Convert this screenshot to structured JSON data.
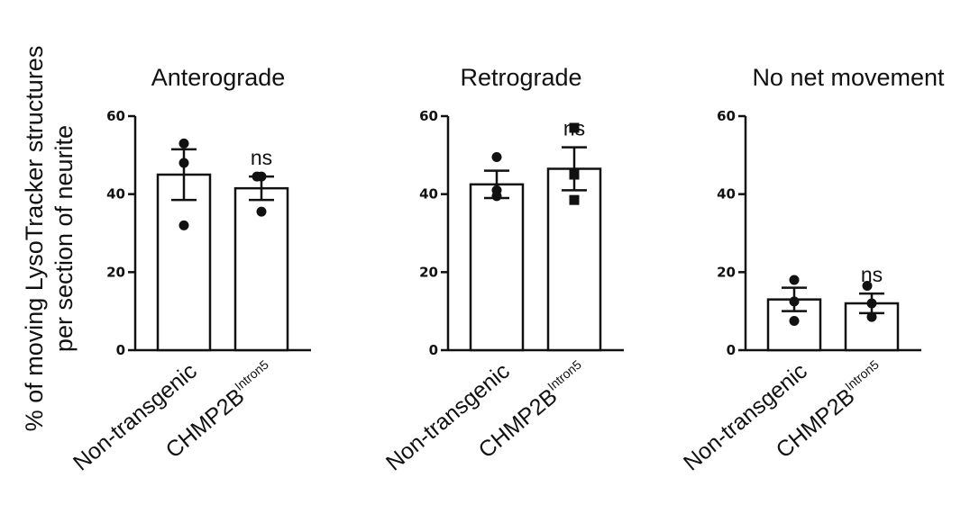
{
  "figure": {
    "ylabel_line1": "% of moving LysoTracker structures",
    "ylabel_line2": "per section of neurite"
  },
  "chart_data": [
    {
      "type": "bar",
      "title": "Anterograde",
      "categories": [
        "Non-transgenic",
        "CHMP2B"
      ],
      "category_superscripts": [
        "",
        "Intron5"
      ],
      "values": [
        45,
        41.5
      ],
      "errors": [
        6.5,
        3
      ],
      "points": [
        [
          53,
          48,
          32
        ],
        [
          44.5,
          44.5,
          35.5
        ]
      ],
      "point_markers": [
        "circle",
        "circle"
      ],
      "significance": [
        "",
        "ns"
      ],
      "ylim": [
        0,
        60
      ],
      "yticks": [
        0,
        20,
        40,
        60
      ],
      "ylabel": "% of moving LysoTracker structures per section of neurite"
    },
    {
      "type": "bar",
      "title": "Retrograde",
      "categories": [
        "Non-transgenic",
        "CHMP2B"
      ],
      "category_superscripts": [
        "",
        "Intron5"
      ],
      "values": [
        42.5,
        46.5
      ],
      "errors": [
        3.5,
        5.5
      ],
      "points": [
        [
          49.5,
          41,
          39.5
        ],
        [
          57,
          45,
          38.5
        ]
      ],
      "point_markers": [
        "circle",
        "square"
      ],
      "significance": [
        "",
        "ns"
      ],
      "ylim": [
        0,
        60
      ],
      "yticks": [
        0,
        20,
        40,
        60
      ]
    },
    {
      "type": "bar",
      "title": "No net movement",
      "categories": [
        "Non-transgenic",
        "CHMP2B"
      ],
      "category_superscripts": [
        "",
        "Intron5"
      ],
      "values": [
        13,
        12
      ],
      "errors": [
        3,
        2.5
      ],
      "points": [
        [
          18,
          12.5,
          7.5
        ],
        [
          16.5,
          12,
          8.5
        ]
      ],
      "point_markers": [
        "circle",
        "circle"
      ],
      "significance": [
        "",
        "ns"
      ],
      "ylim": [
        0,
        60
      ],
      "yticks": [
        0,
        20,
        40,
        60
      ]
    }
  ]
}
